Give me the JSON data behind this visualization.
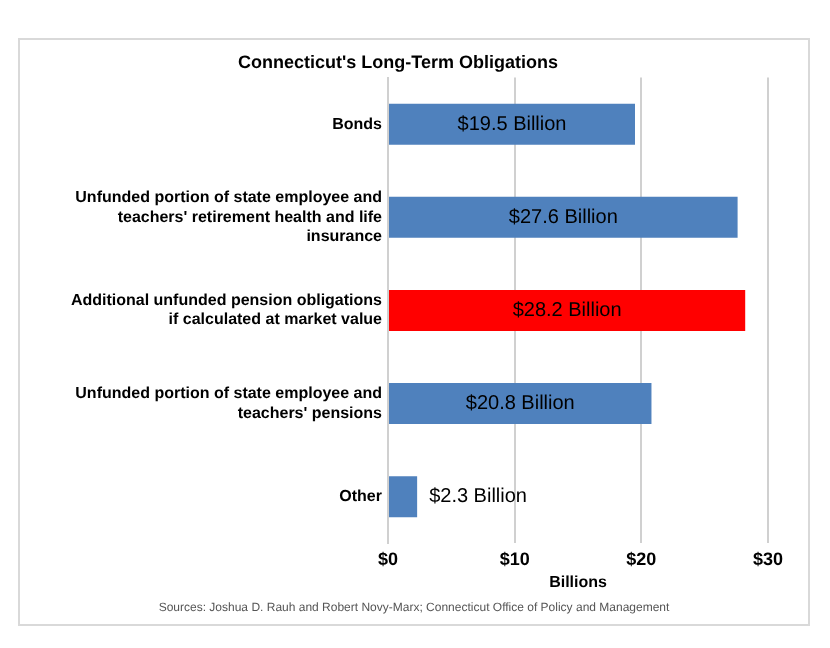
{
  "chart_data": {
    "type": "bar",
    "orientation": "horizontal",
    "title": "Connecticut's Long-Term Obligations",
    "xlabel": "Billions",
    "categories": [
      "Bonds",
      "Unfunded portion of state employee and teachers' retirement health and life insurance",
      "Additional unfunded pension obligations if calculated at market value",
      "Unfunded portion of state employee and teachers' pensions",
      "Other"
    ],
    "values": [
      19.5,
      27.6,
      28.2,
      20.8,
      2.3
    ],
    "colors": [
      "#4f81bd",
      "#4f81bd",
      "#ff0000",
      "#4f81bd",
      "#4f81bd"
    ],
    "value_labels": [
      "$19.5 Billion",
      "$27.6 Billion",
      "$28.2 Billion",
      "$20.8 Billion",
      "$2.3 Billion"
    ],
    "xlim": [
      0,
      30
    ],
    "xticks": [
      {
        "value": 0,
        "label": "$0"
      },
      {
        "value": 10,
        "label": "$10"
      },
      {
        "value": 20,
        "label": "$20"
      },
      {
        "value": 30,
        "label": "$30"
      }
    ],
    "grid": "x",
    "legend": false,
    "annotations": [
      "Sources: Joshua D. Rauh and Robert Novy-Marx; Connecticut Office of Policy and Management"
    ]
  }
}
